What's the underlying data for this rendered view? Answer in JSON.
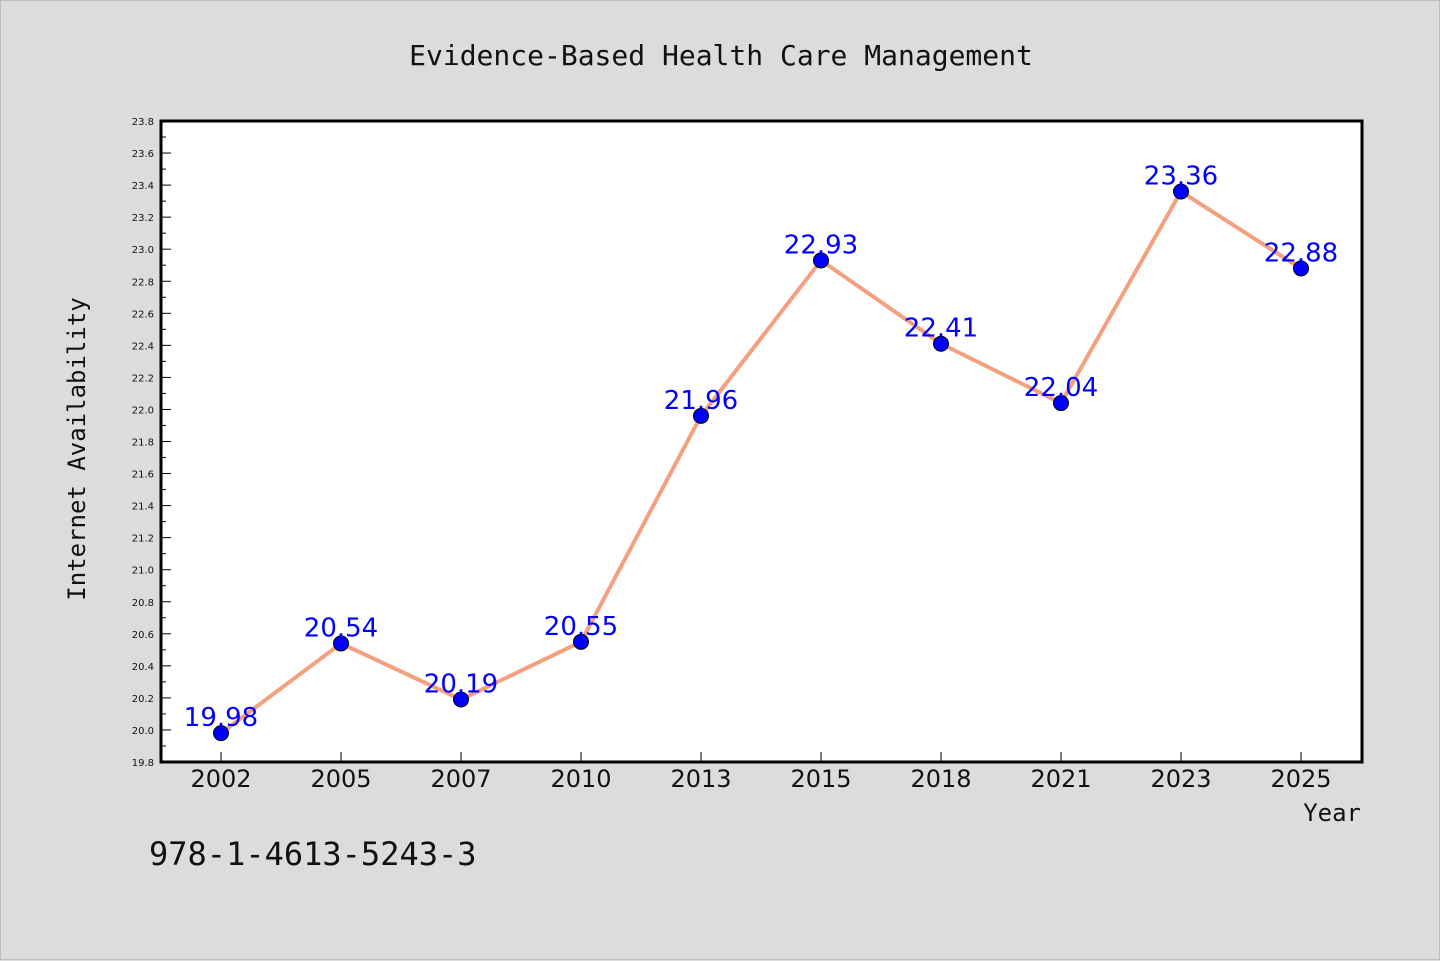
{
  "chart_data": {
    "type": "line",
    "title": "Evidence-Based Health Care Management",
    "xlabel": "Year",
    "ylabel": "Internet Availability",
    "categories": [
      "2002",
      "2005",
      "2007",
      "2010",
      "2013",
      "2015",
      "2018",
      "2021",
      "2023",
      "2025"
    ],
    "series": [
      {
        "values": [
          19.98,
          20.54,
          20.19,
          20.55,
          21.96,
          22.93,
          22.41,
          22.04,
          23.36,
          22.88
        ],
        "data_labels": [
          "19.98",
          "20.54",
          "20.19",
          "20.55",
          "21.96",
          "22.93",
          "22.41",
          "22.04",
          "23.36",
          "22.88"
        ]
      }
    ],
    "ylim": [
      19.8,
      23.8
    ],
    "yticks": [
      "19.8",
      "20.0",
      "20.2",
      "20.4",
      "20.6",
      "20.8",
      "21.0",
      "21.2",
      "21.4",
      "21.6",
      "21.8",
      "22.0",
      "22.2",
      "22.4",
      "22.6",
      "22.8",
      "23.0",
      "23.2",
      "23.4",
      "23.6",
      "23.8"
    ],
    "grid": false,
    "legend": "none",
    "colors": {
      "line": "#f4a07f",
      "marker": "#0000ff",
      "data_label": "#0000ff",
      "plot_background": "#ffffff",
      "figure_background": "#dcdcdc"
    }
  },
  "footer": {
    "isbn": "978-1-4613-5243-3"
  }
}
